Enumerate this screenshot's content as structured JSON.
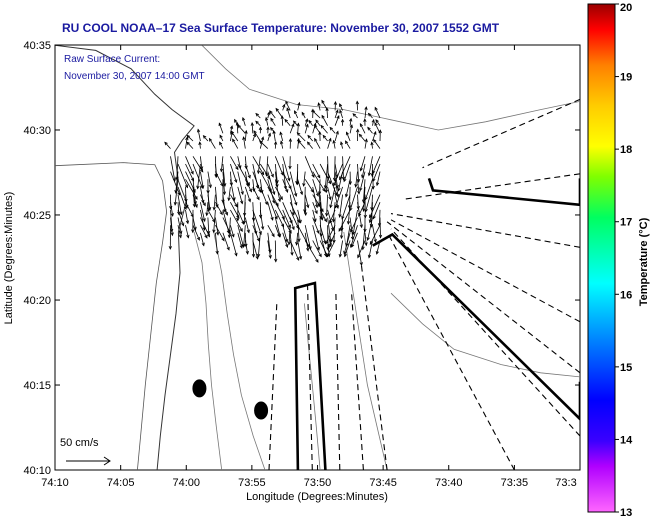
{
  "chart_data": {
    "type": "quiver",
    "title": "RU COOL  NOAA–17  Sea Surface Temperature:  November 30, 2007 1552 GMT",
    "subtitle_lines": [
      "Raw Surface Current:",
      "November 30, 2007 14:00 GMT"
    ],
    "xlabel": "Longitude (Degrees:Minutes)",
    "ylabel": "Latitude (Degrees:Minutes)",
    "x_ticks": [
      {
        "value": -74.1667,
        "label": "74:10"
      },
      {
        "value": -74.0833,
        "label": "74:05"
      },
      {
        "value": -74.0,
        "label": "74:00"
      },
      {
        "value": -73.9167,
        "label": "73:55"
      },
      {
        "value": -73.8333,
        "label": "73:50"
      },
      {
        "value": -73.75,
        "label": "73:45"
      },
      {
        "value": -73.6667,
        "label": "73:40"
      },
      {
        "value": -73.5833,
        "label": "73:35"
      },
      {
        "value": -73.5,
        "label": "73:3"
      }
    ],
    "y_ticks": [
      {
        "value": 40.1667,
        "label": "40:10"
      },
      {
        "value": 40.25,
        "label": "40:15"
      },
      {
        "value": 40.3333,
        "label": "40:20"
      },
      {
        "value": 40.4167,
        "label": "40:25"
      },
      {
        "value": 40.5,
        "label": "40:30"
      },
      {
        "value": 40.5833,
        "label": "40:35"
      }
    ],
    "xlim": [
      -74.1667,
      -73.5
    ],
    "ylim": [
      40.1667,
      40.5833
    ],
    "colorbar": {
      "label": "Temperature (°C)",
      "min": 13,
      "max": 20,
      "ticks": [
        "13",
        "14",
        "15",
        "16",
        "17",
        "18",
        "19",
        "20"
      ]
    },
    "reference_vector": {
      "label": "50 cm/s",
      "speed_cm_s": 50
    },
    "stations": [
      {
        "lon": -73.9833,
        "lat": 40.2467
      },
      {
        "lon": -73.905,
        "lat": 40.225
      }
    ],
    "coastline": [
      [
        -74.1667,
        40.583
      ],
      [
        -74.115,
        40.578
      ],
      [
        -74.07,
        40.56
      ],
      [
        -74.04,
        40.535
      ],
      [
        -74.018,
        40.52
      ],
      [
        -73.99,
        40.504
      ],
      [
        -74.005,
        40.49
      ],
      [
        -74.015,
        40.478
      ],
      [
        -74.01,
        40.45
      ],
      [
        -74.0,
        40.43
      ],
      [
        -74.01,
        40.4
      ],
      [
        -74.008,
        40.36
      ],
      [
        -74.013,
        40.32
      ],
      [
        -74.02,
        40.28
      ],
      [
        -74.027,
        40.24
      ],
      [
        -74.033,
        40.2
      ],
      [
        -74.037,
        40.1667
      ]
    ],
    "outer_coast": [
      [
        -74.1667,
        40.465
      ],
      [
        -74.08,
        40.468
      ],
      [
        -74.04,
        40.466
      ],
      [
        -74.03,
        40.45
      ],
      [
        -74.025,
        40.42
      ],
      [
        -74.03,
        40.39
      ],
      [
        -74.038,
        40.35
      ],
      [
        -74.045,
        40.3
      ],
      [
        -74.052,
        40.25
      ],
      [
        -74.058,
        40.2
      ],
      [
        -74.062,
        40.1667
      ]
    ],
    "bathymetry_contours": [
      [
        [
          -73.98,
          40.583
        ],
        [
          -73.95,
          40.56
        ],
        [
          -73.92,
          40.54
        ],
        [
          -73.86,
          40.525
        ],
        [
          -73.8,
          40.52
        ],
        [
          -73.74,
          40.51
        ],
        [
          -73.68,
          40.5
        ],
        [
          -73.62,
          40.508
        ],
        [
          -73.55,
          40.52
        ],
        [
          -73.5,
          40.528
        ]
      ],
      [
        [
          -73.99,
          40.4
        ],
        [
          -73.98,
          40.37
        ],
        [
          -73.975,
          40.33
        ],
        [
          -73.972,
          40.29
        ],
        [
          -73.968,
          40.25
        ],
        [
          -73.962,
          40.21
        ],
        [
          -73.955,
          40.1667
        ]
      ],
      [
        [
          -73.965,
          40.4
        ],
        [
          -73.955,
          40.36
        ],
        [
          -73.948,
          40.32
        ],
        [
          -73.94,
          40.28
        ],
        [
          -73.93,
          40.24
        ],
        [
          -73.915,
          40.2
        ],
        [
          -73.9,
          40.1667
        ]
      ],
      [
        [
          -73.85,
          40.33
        ],
        [
          -73.845,
          40.29
        ],
        [
          -73.84,
          40.25
        ],
        [
          -73.835,
          40.21
        ],
        [
          -73.83,
          40.1667
        ]
      ],
      [
        [
          -73.8,
          40.4
        ],
        [
          -73.79,
          40.35
        ],
        [
          -73.78,
          40.3
        ],
        [
          -73.77,
          40.25
        ],
        [
          -73.755,
          40.2
        ],
        [
          -73.745,
          40.1667
        ]
      ],
      [
        [
          -73.74,
          40.34
        ],
        [
          -73.7,
          40.31
        ],
        [
          -73.66,
          40.285
        ],
        [
          -73.6,
          40.27
        ],
        [
          -73.55,
          40.262
        ],
        [
          -73.5,
          40.258
        ]
      ]
    ],
    "transects": [
      [
        [
          -73.8583,
          40.1667
        ],
        [
          -73.8617,
          40.345
        ],
        [
          -73.8367,
          40.35
        ],
        [
          -73.8233,
          40.1667
        ]
      ],
      [
        [
          -73.7633,
          40.3867
        ],
        [
          -73.7383,
          40.3975
        ],
        [
          -73.5,
          40.2167
        ],
        [
          -73.5,
          40.2533
        ]
      ],
      [
        [
          -73.6917,
          40.4525
        ],
        [
          -73.6867,
          40.4408
        ],
        [
          -73.5,
          40.4267
        ],
        [
          -73.5,
          40.4525
        ]
      ]
    ],
    "dashed_rays": [
      [
        [
          -73.895,
          40.1667
        ],
        [
          -73.885,
          40.33
        ]
      ],
      [
        [
          -73.84,
          40.1667
        ],
        [
          -73.846,
          40.35
        ]
      ],
      [
        [
          -73.805,
          40.1667
        ],
        [
          -73.81,
          40.34
        ]
      ],
      [
        [
          -73.775,
          40.1667
        ],
        [
          -73.79,
          40.34
        ]
      ],
      [
        [
          -73.745,
          40.1667
        ],
        [
          -73.778,
          40.37
        ]
      ],
      [
        [
          -73.5833,
          40.1667
        ],
        [
          -73.745,
          40.4
        ]
      ],
      [
        [
          -73.5,
          40.2
        ],
        [
          -73.74,
          40.403
        ]
      ],
      [
        [
          -73.5,
          40.262
        ],
        [
          -73.745,
          40.41
        ]
      ],
      [
        [
          -73.5,
          40.312
        ],
        [
          -73.74,
          40.412
        ]
      ],
      [
        [
          -73.5,
          40.385
        ],
        [
          -73.74,
          40.418
        ]
      ],
      [
        [
          -73.5,
          40.457
        ],
        [
          -73.725,
          40.432
        ]
      ],
      [
        [
          -73.5,
          40.53
        ],
        [
          -73.7,
          40.463
        ]
      ]
    ]
  }
}
